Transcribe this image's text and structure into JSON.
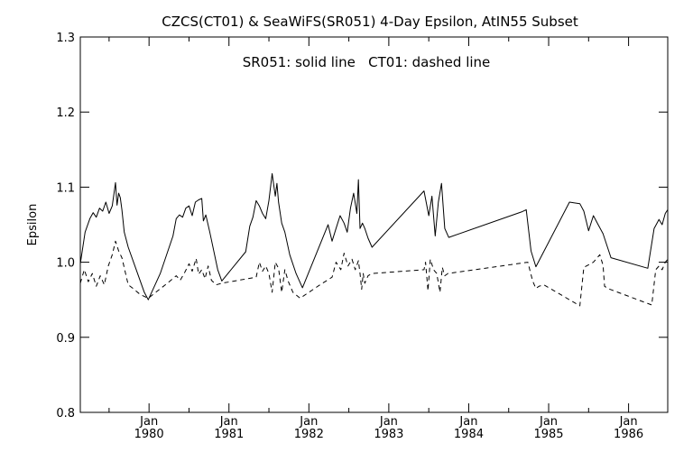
{
  "chart_data": {
    "type": "line",
    "title": "CZCS(CT01) & SeaWiFS(SR051) 4-Day Epsilon, AtIN55 Subset",
    "annotation": "SR051: solid line   CT01: dashed line",
    "xlabel": "",
    "ylabel": "Epsilon",
    "xlim": [
      1979.1,
      1986.45
    ],
    "ylim": [
      0.8,
      1.3
    ],
    "grid": false,
    "legend": "none",
    "y_ticks": [
      0.8,
      0.9,
      1.0,
      1.1,
      1.2,
      1.3
    ],
    "y_tick_labels": [
      "0.8",
      "0.9",
      "1.0",
      "1.1",
      "1.2",
      "1.3"
    ],
    "x_ticks": [
      1979.96,
      1980.96,
      1981.96,
      1982.96,
      1983.96,
      1984.96,
      1985.96
    ],
    "x_tick_labels_month": [
      "Jan",
      "Jan",
      "Jan",
      "Jan",
      "Jan",
      "Jan",
      "Jan"
    ],
    "x_tick_labels_year": [
      "1980",
      "1981",
      "1982",
      "1983",
      "1984",
      "1985",
      "1986"
    ],
    "x_minor_ticks": [
      1979.46,
      1980.46,
      1981.46,
      1982.46,
      1983.46,
      1984.46,
      1985.46
    ],
    "series": [
      {
        "name": "SR051",
        "style": "solid",
        "color": "#000000",
        "x": [
          1979.1,
          1979.16,
          1979.22,
          1979.26,
          1979.3,
          1979.34,
          1979.38,
          1979.42,
          1979.46,
          1979.5,
          1979.54,
          1979.56,
          1979.58,
          1979.6,
          1979.62,
          1979.65,
          1979.7,
          1979.8,
          1979.9,
          1979.95,
          1980.1,
          1980.26,
          1980.3,
          1980.34,
          1980.38,
          1980.42,
          1980.46,
          1980.5,
          1980.54,
          1980.58,
          1980.62,
          1980.64,
          1980.67,
          1980.72,
          1980.82,
          1980.87,
          1981.17,
          1981.22,
          1981.26,
          1981.3,
          1981.34,
          1981.38,
          1981.42,
          1981.46,
          1981.5,
          1981.54,
          1981.56,
          1981.58,
          1981.62,
          1981.66,
          1981.72,
          1981.8,
          1981.88,
          1982.2,
          1982.25,
          1982.3,
          1982.35,
          1982.4,
          1982.44,
          1982.48,
          1982.52,
          1982.56,
          1982.58,
          1982.6,
          1982.63,
          1982.66,
          1982.7,
          1982.75,
          1983.4,
          1983.46,
          1983.5,
          1983.54,
          1983.58,
          1983.62,
          1983.66,
          1983.71,
          1984.62,
          1984.68,
          1984.74,
          1984.8,
          1985.22,
          1985.35,
          1985.4,
          1985.46,
          1985.52,
          1985.58,
          1985.64,
          1985.74,
          1986.2,
          1986.28,
          1986.34,
          1986.38,
          1986.42,
          1986.45
        ],
        "values": [
          0.998,
          1.04,
          1.058,
          1.066,
          1.06,
          1.072,
          1.068,
          1.08,
          1.065,
          1.075,
          1.106,
          1.076,
          1.092,
          1.086,
          1.07,
          1.04,
          1.02,
          0.99,
          0.96,
          0.95,
          0.985,
          1.035,
          1.058,
          1.063,
          1.06,
          1.072,
          1.075,
          1.062,
          1.08,
          1.083,
          1.085,
          1.055,
          1.063,
          1.04,
          0.99,
          0.975,
          1.014,
          1.048,
          1.06,
          1.082,
          1.075,
          1.065,
          1.058,
          1.082,
          1.118,
          1.088,
          1.105,
          1.08,
          1.052,
          1.04,
          1.01,
          0.985,
          0.966,
          1.05,
          1.028,
          1.045,
          1.062,
          1.052,
          1.04,
          1.072,
          1.092,
          1.065,
          1.11,
          1.045,
          1.052,
          1.045,
          1.032,
          1.02,
          1.095,
          1.062,
          1.088,
          1.035,
          1.08,
          1.105,
          1.045,
          1.033,
          1.067,
          1.07,
          1.015,
          0.994,
          1.08,
          1.078,
          1.068,
          1.042,
          1.062,
          1.05,
          1.038,
          1.006,
          0.992,
          1.045,
          1.057,
          1.05,
          1.065,
          1.07
        ]
      },
      {
        "name": "CT01",
        "style": "dashed",
        "color": "#000000",
        "x": [
          1979.1,
          1979.15,
          1979.2,
          1979.25,
          1979.3,
          1979.35,
          1979.4,
          1979.45,
          1979.5,
          1979.54,
          1979.58,
          1979.62,
          1979.66,
          1979.7,
          1979.76,
          1979.85,
          1979.95,
          1980.2,
          1980.3,
          1980.35,
          1980.4,
          1980.46,
          1980.5,
          1980.55,
          1980.58,
          1980.62,
          1980.66,
          1980.7,
          1980.74,
          1980.8,
          1980.87,
          1981.3,
          1981.34,
          1981.38,
          1981.42,
          1981.46,
          1981.5,
          1981.54,
          1981.58,
          1981.62,
          1981.66,
          1981.7,
          1981.76,
          1981.85,
          1982.1,
          1982.25,
          1982.3,
          1982.36,
          1982.4,
          1982.45,
          1982.5,
          1982.54,
          1982.58,
          1982.6,
          1982.62,
          1982.64,
          1982.66,
          1982.7,
          1982.75,
          1983.4,
          1983.42,
          1983.45,
          1983.48,
          1983.52,
          1983.56,
          1983.6,
          1983.63,
          1983.66,
          1983.7,
          1984.7,
          1984.76,
          1984.8,
          1984.84,
          1984.9,
          1985.35,
          1985.4,
          1985.52,
          1985.6,
          1985.64,
          1985.66,
          1985.7,
          1986.25,
          1986.3,
          1986.34,
          1986.38,
          1986.42,
          1986.45
        ],
        "values": [
          0.972,
          0.99,
          0.974,
          0.985,
          0.968,
          0.982,
          0.97,
          0.995,
          1.01,
          1.028,
          1.015,
          1.006,
          0.988,
          0.97,
          0.965,
          0.957,
          0.952,
          0.973,
          0.982,
          0.976,
          0.985,
          0.998,
          0.988,
          1.005,
          0.984,
          0.99,
          0.978,
          0.995,
          0.976,
          0.97,
          0.972,
          0.98,
          1.0,
          0.988,
          0.995,
          0.985,
          0.96,
          1.0,
          0.992,
          0.96,
          0.99,
          0.975,
          0.96,
          0.952,
          0.97,
          0.98,
          1.0,
          0.99,
          1.012,
          0.995,
          1.004,
          0.99,
          1.002,
          0.985,
          0.964,
          0.985,
          0.972,
          0.982,
          0.985,
          0.99,
          1.0,
          0.962,
          1.004,
          0.99,
          0.985,
          0.96,
          0.993,
          0.982,
          0.985,
          1.0,
          0.975,
          0.965,
          0.968,
          0.97,
          0.942,
          0.993,
          1.0,
          1.01,
          0.996,
          0.968,
          0.965,
          0.943,
          0.99,
          0.995,
          0.99,
          1.0,
          1.004
        ]
      }
    ]
  }
}
